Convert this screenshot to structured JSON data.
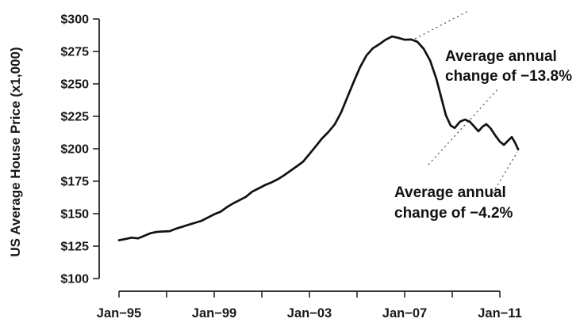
{
  "chart_data": {
    "type": "line",
    "title": "",
    "xlabel": "",
    "ylabel": "US Average House Price (x1,000)",
    "ylim": [
      100,
      300
    ],
    "xlim": [
      1995,
      2011.8
    ],
    "grid": false,
    "legend": "none",
    "y_ticks": [
      {
        "value": 300,
        "label": "$300"
      },
      {
        "value": 275,
        "label": "$275"
      },
      {
        "value": 250,
        "label": "$250"
      },
      {
        "value": 225,
        "label": "$225"
      },
      {
        "value": 200,
        "label": "$200"
      },
      {
        "value": 175,
        "label": "$175"
      },
      {
        "value": 150,
        "label": "$150"
      },
      {
        "value": 125,
        "label": "$125"
      },
      {
        "value": 100,
        "label": "$100"
      }
    ],
    "x_minor_tick_years": [
      1995,
      1997,
      1999,
      2001,
      2003,
      2005,
      2007,
      2009,
      2011
    ],
    "x_ticks": [
      {
        "year": 1995,
        "label": "Jan−95"
      },
      {
        "year": 1999,
        "label": "Jan−99"
      },
      {
        "year": 2003,
        "label": "Jan−03"
      },
      {
        "year": 2007,
        "label": "Jan−07"
      },
      {
        "year": 2011,
        "label": "Jan−11"
      }
    ],
    "series": [
      {
        "name": "US average house price ($1,000s)",
        "color": "#111111",
        "points": [
          [
            1995.0,
            129.5
          ],
          [
            1995.27,
            130.5
          ],
          [
            1995.53,
            131.5
          ],
          [
            1995.8,
            131.0
          ],
          [
            1996.07,
            133.0
          ],
          [
            1996.33,
            135.0
          ],
          [
            1996.6,
            136.0
          ],
          [
            1996.87,
            136.3
          ],
          [
            1997.13,
            136.5
          ],
          [
            1997.4,
            138.5
          ],
          [
            1997.67,
            140.0
          ],
          [
            1997.93,
            141.5
          ],
          [
            1998.2,
            143.0
          ],
          [
            1998.47,
            144.5
          ],
          [
            1998.73,
            147.0
          ],
          [
            1999.0,
            149.5
          ],
          [
            1999.27,
            151.5
          ],
          [
            1999.53,
            155.0
          ],
          [
            1999.8,
            158.0
          ],
          [
            2000.07,
            160.5
          ],
          [
            2000.33,
            163.0
          ],
          [
            2000.6,
            167.0
          ],
          [
            2000.87,
            169.5
          ],
          [
            2001.13,
            172.0
          ],
          [
            2001.4,
            174.0
          ],
          [
            2001.67,
            176.5
          ],
          [
            2001.93,
            179.5
          ],
          [
            2002.2,
            183.0
          ],
          [
            2002.47,
            186.5
          ],
          [
            2002.73,
            190.0
          ],
          [
            2003.0,
            196.0
          ],
          [
            2003.27,
            202.0
          ],
          [
            2003.53,
            208.0
          ],
          [
            2003.8,
            213.0
          ],
          [
            2004.07,
            219.0
          ],
          [
            2004.33,
            228.0
          ],
          [
            2004.6,
            240.0
          ],
          [
            2004.87,
            252.0
          ],
          [
            2005.13,
            263.0
          ],
          [
            2005.4,
            272.0
          ],
          [
            2005.67,
            277.5
          ],
          [
            2005.93,
            280.5
          ],
          [
            2006.2,
            284.0
          ],
          [
            2006.47,
            286.5
          ],
          [
            2006.73,
            285.5
          ],
          [
            2007.0,
            284.0
          ],
          [
            2007.27,
            284.2
          ],
          [
            2007.53,
            282.5
          ],
          [
            2007.8,
            277.0
          ],
          [
            2008.07,
            268.0
          ],
          [
            2008.33,
            254.0
          ],
          [
            2008.53,
            240.0
          ],
          [
            2008.73,
            226.0
          ],
          [
            2008.93,
            218.0
          ],
          [
            2009.1,
            216.0
          ],
          [
            2009.33,
            221.0
          ],
          [
            2009.53,
            222.5
          ],
          [
            2009.73,
            221.0
          ],
          [
            2009.93,
            217.0
          ],
          [
            2010.1,
            213.5
          ],
          [
            2010.27,
            217.0
          ],
          [
            2010.43,
            219.0
          ],
          [
            2010.6,
            216.0
          ],
          [
            2010.8,
            210.5
          ],
          [
            2011.0,
            205.5
          ],
          [
            2011.17,
            203.0
          ],
          [
            2011.33,
            206.0
          ],
          [
            2011.5,
            209.0
          ],
          [
            2011.63,
            205.0
          ],
          [
            2011.77,
            199.5
          ]
        ]
      }
    ],
    "annotations": [
      {
        "lines": [
          "Average annual",
          "change of −13.8%"
        ]
      },
      {
        "lines": [
          "Average annual",
          "change of −4.2%"
        ]
      }
    ]
  }
}
